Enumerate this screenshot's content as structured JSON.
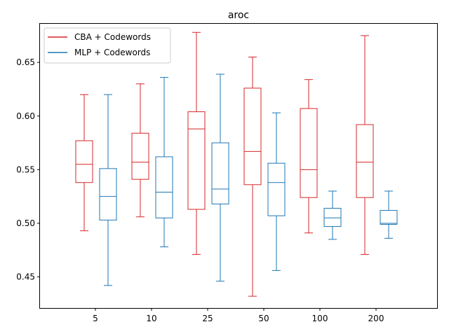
{
  "chart_data": {
    "type": "box",
    "title": "aroc",
    "xlabel": "",
    "ylabel": "",
    "categories": [
      "5",
      "10",
      "25",
      "50",
      "100",
      "200"
    ],
    "ylim": [
      0.421,
      0.686
    ],
    "yticks": [
      0.45,
      0.5,
      0.55,
      0.6,
      0.65
    ],
    "ytick_labels": [
      "0.45",
      "0.50",
      "0.55",
      "0.60",
      "0.65"
    ],
    "grid": false,
    "legend_position": "top-left",
    "series": [
      {
        "name": "CBA + Codewords",
        "color": "#d62728",
        "boxes": [
          {
            "whislo": 0.493,
            "q1": 0.538,
            "med": 0.555,
            "q3": 0.577,
            "whishi": 0.62
          },
          {
            "whislo": 0.506,
            "q1": 0.541,
            "med": 0.557,
            "q3": 0.584,
            "whishi": 0.63
          },
          {
            "whislo": 0.471,
            "q1": 0.513,
            "med": 0.588,
            "q3": 0.604,
            "whishi": 0.678
          },
          {
            "whislo": 0.432,
            "q1": 0.536,
            "med": 0.567,
            "q3": 0.626,
            "whishi": 0.655
          },
          {
            "whislo": 0.491,
            "q1": 0.524,
            "med": 0.55,
            "q3": 0.607,
            "whishi": 0.634
          },
          {
            "whislo": 0.471,
            "q1": 0.524,
            "med": 0.557,
            "q3": 0.592,
            "whishi": 0.675
          }
        ]
      },
      {
        "name": "MLP + Codewords",
        "color": "#1f77b4",
        "boxes": [
          {
            "whislo": 0.442,
            "q1": 0.503,
            "med": 0.525,
            "q3": 0.551,
            "whishi": 0.62
          },
          {
            "whislo": 0.478,
            "q1": 0.505,
            "med": 0.529,
            "q3": 0.562,
            "whishi": 0.636
          },
          {
            "whislo": 0.446,
            "q1": 0.518,
            "med": 0.532,
            "q3": 0.575,
            "whishi": 0.639
          },
          {
            "whislo": 0.456,
            "q1": 0.507,
            "med": 0.538,
            "q3": 0.556,
            "whishi": 0.603
          },
          {
            "whislo": 0.485,
            "q1": 0.497,
            "med": 0.505,
            "q3": 0.514,
            "whishi": 0.53
          },
          {
            "whislo": 0.486,
            "q1": 0.499,
            "med": 0.5,
            "q3": 0.512,
            "whishi": 0.53
          }
        ]
      }
    ]
  }
}
